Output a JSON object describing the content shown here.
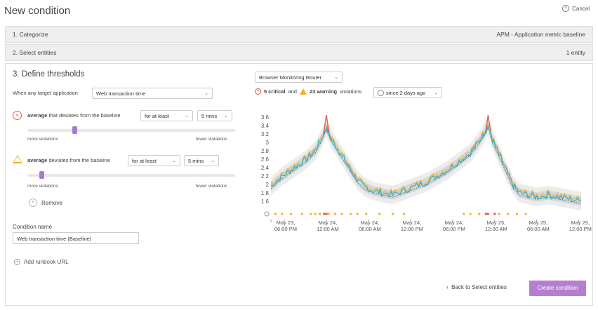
{
  "header": {
    "title": "New condition",
    "cancel_label": "Cancel"
  },
  "steps": [
    {
      "label": "1. Categorize",
      "value": "APM - Application metric baseline"
    },
    {
      "label": "2. Select entities",
      "value": "1 entity"
    }
  ],
  "thresholds": {
    "heading": "3. Define thresholds",
    "target_prefix": "When any target application",
    "metric": "Web transaction time",
    "critical": {
      "func": "average",
      "text": "that deviates from the baseline",
      "duration_mode": "for at least",
      "duration": "5 mins",
      "slider_level": 0.22,
      "left_label": "more violations",
      "right_label": "fewer violations"
    },
    "warning": {
      "func": "average",
      "text": "deviates from the baseline",
      "duration_mode": "for at least",
      "duration": "5 mins",
      "slider_level": 0.06,
      "left_label": "more violations",
      "right_label": "fewer violations"
    },
    "remove_label": "Remove"
  },
  "condition": {
    "name_label": "Condition name",
    "name_value": "Web transaction time (Baseline)"
  },
  "runbook_label": "Add runbook URL",
  "footer": {
    "back_label": "Back to Select entities",
    "create_label": "Create condition"
  },
  "chart_panel": {
    "entity_select": "Browser Monitoring Router",
    "critical_count": "5 critical",
    "and_text": "and",
    "warning_count": "23 warning",
    "violations_text": "violations",
    "time_range": "since 2 days ago"
  },
  "colors": {
    "accent": "#b57fd0",
    "critical": "#e05a4e",
    "warning": "#f0b429",
    "series": "#2bb3d6",
    "band": "#d9d9d9"
  },
  "chart_data": {
    "type": "line",
    "ylim": [
      1.5,
      3.7
    ],
    "y_ticks": [
      1.6,
      1.8,
      2,
      2.2,
      2.4,
      2.6,
      2.8,
      3,
      3.2,
      3.4,
      3.6
    ],
    "x_ticks": [
      {
        "t": 0,
        "label1": "",
        "label2": ""
      },
      {
        "t": 0.06,
        "label1": "May 23,",
        "label2": "06:00 PM"
      },
      {
        "t": 0.25,
        "label1": "May 24,",
        "label2": "12:00 AM"
      },
      {
        "t": 0.44,
        "label1": "May 24,",
        "label2": "06:00 AM"
      },
      {
        "t": 0.63,
        "label1": "May 24,",
        "label2": "12:00 PM"
      },
      {
        "t": 0.82,
        "label1": "May 24,",
        "label2": "06:00 PM"
      },
      {
        "t": 1.01,
        "label1": "May 25,",
        "label2": "12:00 AM"
      },
      {
        "t": 1.2,
        "label1": "May 25,",
        "label2": "06:00 AM"
      },
      {
        "t": 1.39,
        "label1": "May 25,",
        "label2": "12:00 PM"
      }
    ],
    "x_range": [
      0,
      1.4
    ],
    "series": [
      {
        "points": [
          [
            0,
            1.95
          ],
          [
            0.04,
            2.15
          ],
          [
            0.08,
            2.3
          ],
          [
            0.12,
            2.45
          ],
          [
            0.16,
            2.6
          ],
          [
            0.2,
            2.8
          ],
          [
            0.23,
            3.1
          ],
          [
            0.25,
            3.35
          ],
          [
            0.27,
            3.1
          ],
          [
            0.3,
            2.85
          ],
          [
            0.33,
            2.6
          ],
          [
            0.36,
            2.35
          ],
          [
            0.39,
            2.1
          ],
          [
            0.42,
            1.95
          ],
          [
            0.46,
            1.85
          ],
          [
            0.5,
            1.8
          ],
          [
            0.55,
            1.75
          ],
          [
            0.6,
            1.85
          ],
          [
            0.65,
            1.95
          ],
          [
            0.7,
            2.05
          ],
          [
            0.75,
            2.2
          ],
          [
            0.8,
            2.35
          ],
          [
            0.85,
            2.55
          ],
          [
            0.9,
            2.75
          ],
          [
            0.93,
            2.95
          ],
          [
            0.96,
            3.2
          ],
          [
            0.98,
            3.4
          ],
          [
            1.0,
            3.05
          ],
          [
            1.03,
            2.7
          ],
          [
            1.06,
            2.35
          ],
          [
            1.09,
            2.0
          ],
          [
            1.12,
            1.8
          ],
          [
            1.16,
            1.75
          ],
          [
            1.2,
            1.7
          ],
          [
            1.25,
            1.75
          ],
          [
            1.3,
            1.7
          ],
          [
            1.35,
            1.65
          ],
          [
            1.4,
            1.6
          ]
        ]
      }
    ],
    "critical_spikes": [
      0.25,
      0.98
    ],
    "warning_marker_t": [
      0.02,
      0.05,
      0.09,
      0.14,
      0.18,
      0.2,
      0.22,
      0.26,
      0.29,
      0.32,
      0.36,
      0.39,
      0.43,
      0.49,
      0.55,
      0.6,
      0.87,
      0.9,
      0.94,
      1.03,
      1.07,
      1.11,
      1.15
    ],
    "critical_marker_t": [
      0.24,
      0.25,
      0.97,
      0.98,
      1.01
    ]
  }
}
